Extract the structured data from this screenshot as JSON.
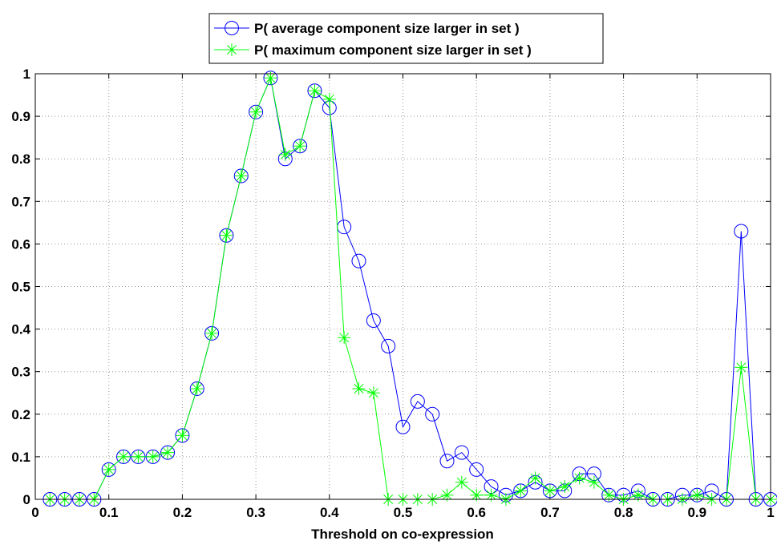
{
  "chart_data": {
    "type": "line",
    "title": "",
    "xlabel": "Threshold on co-expression",
    "ylabel": "",
    "xlim": [
      0,
      1
    ],
    "ylim": [
      0,
      1
    ],
    "grid": true,
    "legend_position": "top-center",
    "x_ticks": [
      0,
      0.1,
      0.2,
      0.3,
      0.4,
      0.5,
      0.6,
      0.7,
      0.8,
      0.9,
      1
    ],
    "x_tick_labels": [
      "0",
      "0.1",
      "0.2",
      "0.3",
      "0.4",
      "0.5",
      "0.6",
      "0.7",
      "0.8",
      "0.9",
      "1"
    ],
    "y_ticks": [
      0,
      0.1,
      0.2,
      0.3,
      0.4,
      0.5,
      0.6,
      0.7,
      0.8,
      0.9,
      1
    ],
    "y_tick_labels": [
      "0",
      "0.1",
      "0.2",
      "0.3",
      "0.4",
      "0.5",
      "0.6",
      "0.7",
      "0.8",
      "0.9",
      "1"
    ],
    "x": [
      0.02,
      0.04,
      0.06,
      0.08,
      0.1,
      0.12,
      0.14,
      0.16,
      0.18,
      0.2,
      0.22,
      0.24,
      0.26,
      0.28,
      0.3,
      0.32,
      0.34,
      0.36,
      0.38,
      0.4,
      0.42,
      0.44,
      0.46,
      0.48,
      0.5,
      0.52,
      0.54,
      0.56,
      0.58,
      0.6,
      0.62,
      0.64,
      0.66,
      0.68,
      0.7,
      0.72,
      0.74,
      0.76,
      0.78,
      0.8,
      0.82,
      0.84,
      0.86,
      0.88,
      0.9,
      0.92,
      0.94,
      0.96,
      0.98,
      1.0
    ],
    "series": [
      {
        "name": "P( average component size larger in set )",
        "color": "#0000ff",
        "marker": "circle",
        "values": [
          0,
          0,
          0,
          0,
          0.07,
          0.1,
          0.1,
          0.1,
          0.11,
          0.15,
          0.26,
          0.39,
          0.62,
          0.76,
          0.91,
          0.99,
          0.8,
          0.83,
          0.96,
          0.92,
          0.64,
          0.56,
          0.42,
          0.36,
          0.17,
          0.23,
          0.2,
          0.09,
          0.11,
          0.07,
          0.03,
          0.01,
          0.02,
          0.04,
          0.02,
          0.02,
          0.06,
          0.06,
          0.01,
          0.01,
          0.02,
          0,
          0,
          0.01,
          0.01,
          0.02,
          0,
          0.63,
          0,
          0
        ]
      },
      {
        "name": "P( maximum component size larger in set )",
        "color": "#00ff00",
        "marker": "asterisk",
        "values": [
          0,
          0,
          0,
          0,
          0.07,
          0.1,
          0.1,
          0.1,
          0.11,
          0.15,
          0.26,
          0.39,
          0.62,
          0.76,
          0.91,
          0.99,
          0.81,
          0.83,
          0.96,
          0.94,
          0.38,
          0.26,
          0.25,
          0,
          0,
          0,
          0,
          0.01,
          0.04,
          0.01,
          0.01,
          0,
          0.02,
          0.05,
          0.02,
          0.03,
          0.05,
          0.04,
          0.01,
          0,
          0.01,
          0,
          0,
          0,
          0.01,
          0,
          0,
          0.31,
          0,
          0
        ]
      }
    ]
  }
}
